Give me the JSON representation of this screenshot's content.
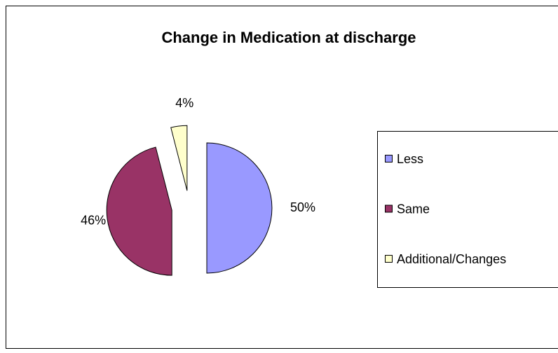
{
  "chart_data": {
    "type": "pie",
    "title": "Change in Medication at discharge",
    "categories": [
      "Less",
      "Same",
      "Additional/Changes"
    ],
    "values": [
      50,
      46,
      4
    ],
    "value_labels": [
      "50%",
      "46%",
      "4%"
    ],
    "colors": [
      "#9999ff",
      "#993366",
      "#ffffcc"
    ],
    "legend": "right"
  }
}
